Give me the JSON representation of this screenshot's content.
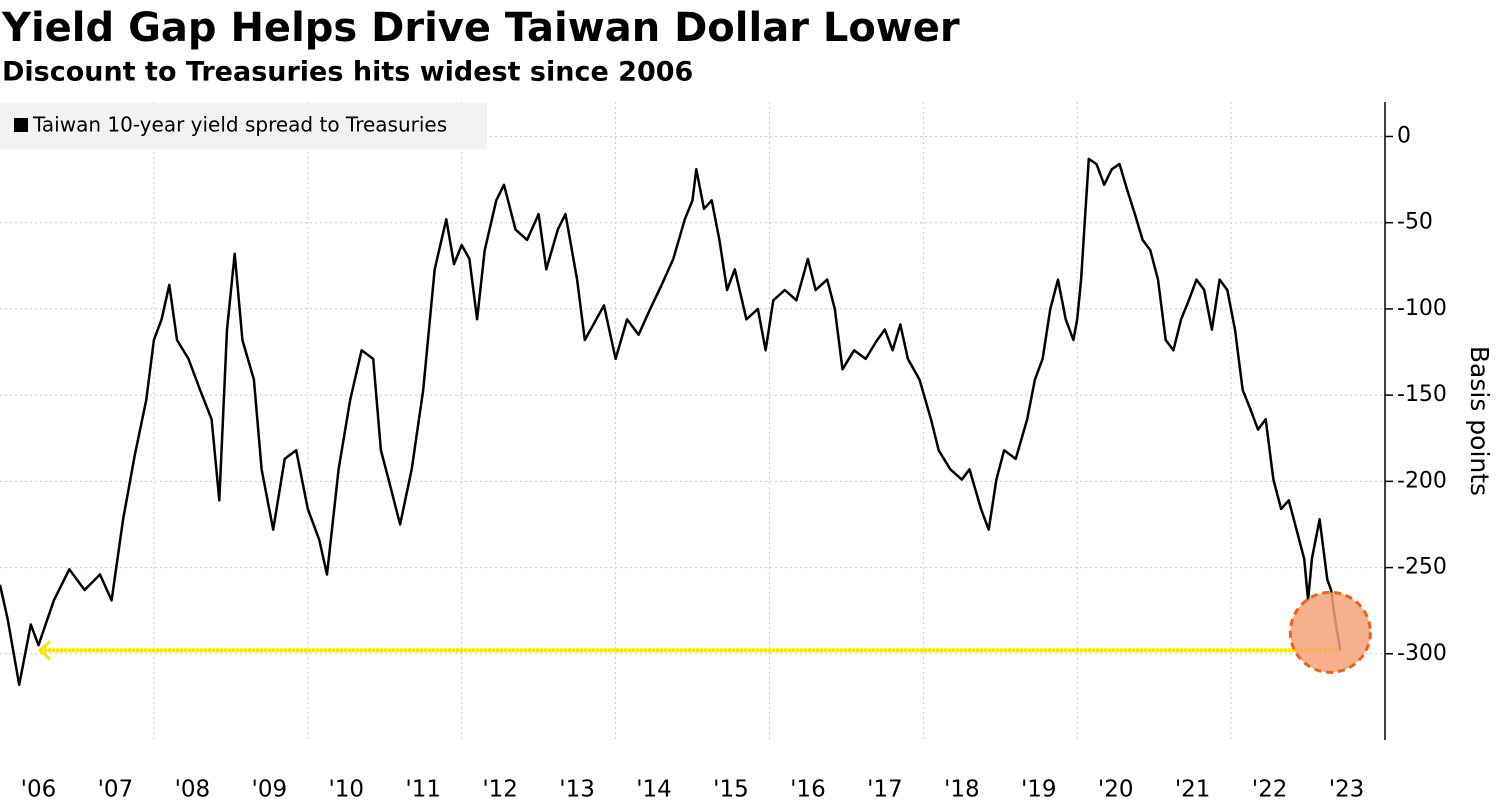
{
  "chart_data": {
    "type": "line",
    "title": "Yield Gap Helps Drive Taiwan Dollar Lower",
    "subtitle": "Discount to Treasuries hits widest since 2006",
    "y_label": "Basis points",
    "xlim": [
      2006,
      2024
    ],
    "ylim": [
      -350,
      20
    ],
    "yticks": [
      0,
      -50,
      -100,
      -150,
      -200,
      -250,
      -300
    ],
    "xticks": [
      {
        "value": 2006.5,
        "label": "'06"
      },
      {
        "value": 2007.5,
        "label": "'07"
      },
      {
        "value": 2008.5,
        "label": "'08"
      },
      {
        "value": 2009.5,
        "label": "'09"
      },
      {
        "value": 2010.5,
        "label": "'10"
      },
      {
        "value": 2011.5,
        "label": "'11"
      },
      {
        "value": 2012.5,
        "label": "'12"
      },
      {
        "value": 2013.5,
        "label": "'13"
      },
      {
        "value": 2014.5,
        "label": "'14"
      },
      {
        "value": 2015.5,
        "label": "'15"
      },
      {
        "value": 2016.5,
        "label": "'16"
      },
      {
        "value": 2017.5,
        "label": "'17"
      },
      {
        "value": 2018.5,
        "label": "'18"
      },
      {
        "value": 2019.5,
        "label": "'19"
      },
      {
        "value": 2020.5,
        "label": "'20"
      },
      {
        "value": 2021.5,
        "label": "'21"
      },
      {
        "value": 2022.5,
        "label": "'22"
      },
      {
        "value": 2023.5,
        "label": "'23"
      }
    ],
    "xgrid": [
      2008,
      2010,
      2012,
      2014,
      2016,
      2018,
      2020,
      2022
    ],
    "grid": true,
    "legend": "top-left",
    "reference_line": {
      "y": -298,
      "x": [
        2006.52,
        2023.42
      ],
      "color": "#f5e600"
    },
    "highlight": {
      "x": 2023.42,
      "y": -298,
      "color": "#f4a27a",
      "edge": "#e8641e"
    },
    "series": [
      {
        "name": "Taiwan 10-year yield spread to Treasuries",
        "color": "#000000",
        "x": [
          2006.0,
          2006.1,
          2006.25,
          2006.4,
          2006.5,
          2006.7,
          2006.9,
          2007.1,
          2007.3,
          2007.45,
          2007.6,
          2007.75,
          2007.9,
          2008.0,
          2008.1,
          2008.2,
          2008.3,
          2008.45,
          2008.6,
          2008.75,
          2008.85,
          2008.95,
          2009.05,
          2009.15,
          2009.3,
          2009.4,
          2009.55,
          2009.7,
          2009.85,
          2010.0,
          2010.15,
          2010.25,
          2010.4,
          2010.55,
          2010.7,
          2010.85,
          2010.95,
          2011.05,
          2011.2,
          2011.35,
          2011.5,
          2011.65,
          2011.8,
          2011.9,
          2012.0,
          2012.1,
          2012.2,
          2012.3,
          2012.45,
          2012.55,
          2012.7,
          2012.85,
          2013.0,
          2013.1,
          2013.25,
          2013.35,
          2013.5,
          2013.6,
          2013.75,
          2013.85,
          2014.0,
          2014.15,
          2014.3,
          2014.45,
          2014.6,
          2014.75,
          2014.9,
          2015.0,
          2015.05,
          2015.15,
          2015.25,
          2015.35,
          2015.45,
          2015.55,
          2015.7,
          2015.85,
          2015.95,
          2016.05,
          2016.2,
          2016.35,
          2016.5,
          2016.6,
          2016.75,
          2016.85,
          2016.95,
          2017.1,
          2017.25,
          2017.4,
          2017.5,
          2017.6,
          2017.7,
          2017.8,
          2017.95,
          2018.1,
          2018.2,
          2018.35,
          2018.5,
          2018.6,
          2018.75,
          2018.85,
          2018.95,
          2019.05,
          2019.2,
          2019.35,
          2019.45,
          2019.55,
          2019.65,
          2019.75,
          2019.85,
          2019.95,
          2020.0,
          2020.05,
          2020.1,
          2020.15,
          2020.25,
          2020.35,
          2020.45,
          2020.55,
          2020.65,
          2020.75,
          2020.85,
          2020.95,
          2021.05,
          2021.15,
          2021.25,
          2021.35,
          2021.45,
          2021.55,
          2021.65,
          2021.75,
          2021.85,
          2021.95,
          2022.05,
          2022.15,
          2022.25,
          2022.35,
          2022.45,
          2022.55,
          2022.65,
          2022.75,
          2022.85,
          2022.95,
          2023.0,
          2023.05,
          2023.15,
          2023.25,
          2023.3,
          2023.35,
          2023.42
        ],
        "values": [
          -260,
          -280,
          -318,
          -283,
          -295,
          -269,
          -251,
          -263,
          -254,
          -269,
          -222,
          -185,
          -153,
          -118,
          -106,
          -86,
          -118,
          -129,
          -147,
          -164,
          -211,
          -112,
          -68,
          -118,
          -141,
          -193,
          -228,
          -187,
          -182,
          -216,
          -234,
          -254,
          -193,
          -153,
          -124,
          -129,
          -182,
          -199,
          -225,
          -193,
          -147,
          -77,
          -48,
          -74,
          -63,
          -71,
          -106,
          -66,
          -37,
          -28,
          -54,
          -60,
          -45,
          -77,
          -54,
          -45,
          -83,
          -118,
          -106,
          -98,
          -129,
          -106,
          -115,
          -100,
          -86,
          -71,
          -48,
          -37,
          -19,
          -42,
          -37,
          -60,
          -89,
          -77,
          -106,
          -100,
          -124,
          -95,
          -89,
          -95,
          -71,
          -89,
          -83,
          -100,
          -135,
          -124,
          -129,
          -118,
          -112,
          -124,
          -109,
          -129,
          -141,
          -164,
          -182,
          -193,
          -199,
          -193,
          -216,
          -228,
          -199,
          -182,
          -187,
          -164,
          -141,
          -129,
          -100,
          -83,
          -106,
          -118,
          -106,
          -83,
          -48,
          -13,
          -16,
          -28,
          -19,
          -16,
          -31,
          -45,
          -60,
          -66,
          -83,
          -118,
          -124,
          -106,
          -95,
          -83,
          -89,
          -112,
          -83,
          -89,
          -112,
          -147,
          -158,
          -170,
          -164,
          -199,
          -216,
          -211,
          -228,
          -245,
          -269,
          -245,
          -222,
          -257,
          -263,
          -280,
          -298
        ]
      }
    ]
  }
}
